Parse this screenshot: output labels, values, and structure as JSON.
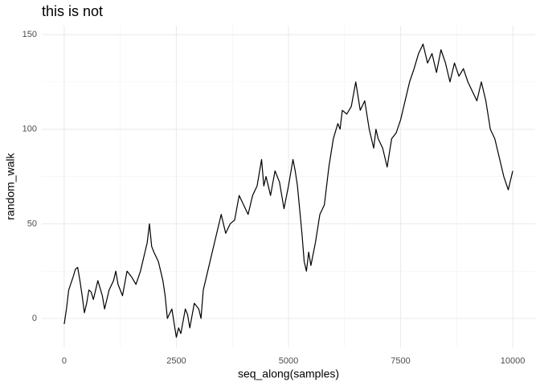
{
  "chart_data": {
    "type": "line",
    "title": "this is not",
    "xlabel": "seq_along(samples)",
    "ylabel": "random_walk",
    "x": [
      0,
      50,
      100,
      200,
      250,
      300,
      350,
      400,
      450,
      500,
      550,
      600,
      650,
      700,
      750,
      800,
      850,
      900,
      950,
      1000,
      1100,
      1150,
      1200,
      1300,
      1400,
      1500,
      1600,
      1700,
      1800,
      1850,
      1900,
      1950,
      2000,
      2100,
      2200,
      2250,
      2300,
      2400,
      2500,
      2550,
      2600,
      2700,
      2750,
      2800,
      2900,
      3000,
      3050,
      3100,
      3200,
      3300,
      3400,
      3500,
      3600,
      3700,
      3800,
      3900,
      4000,
      4100,
      4200,
      4300,
      4400,
      4450,
      4500,
      4600,
      4700,
      4800,
      4900,
      5000,
      5100,
      5150,
      5200,
      5300,
      5350,
      5400,
      5450,
      5500,
      5600,
      5700,
      5800,
      5900,
      6000,
      6100,
      6150,
      6200,
      6300,
      6400,
      6500,
      6600,
      6700,
      6800,
      6900,
      6950,
      7000,
      7100,
      7200,
      7300,
      7400,
      7500,
      7600,
      7700,
      7800,
      7900,
      8000,
      8100,
      8200,
      8300,
      8400,
      8500,
      8600,
      8700,
      8800,
      8900,
      9000,
      9100,
      9200,
      9300,
      9400,
      9500,
      9600,
      9700,
      9800,
      9900,
      10000
    ],
    "series": [
      {
        "name": "random_walk",
        "color": "#000000",
        "values": [
          -3,
          5,
          15,
          22,
          26,
          27,
          20,
          12,
          3,
          8,
          15,
          14,
          10,
          15,
          20,
          16,
          12,
          5,
          10,
          15,
          20,
          25,
          18,
          12,
          25,
          22,
          18,
          25,
          35,
          40,
          50,
          38,
          35,
          30,
          20,
          12,
          0,
          5,
          -10,
          -5,
          -8,
          5,
          2,
          -5,
          8,
          5,
          0,
          15,
          25,
          35,
          45,
          55,
          45,
          50,
          52,
          65,
          60,
          55,
          65,
          70,
          84,
          70,
          75,
          65,
          78,
          72,
          58,
          70,
          84,
          78,
          70,
          45,
          30,
          25,
          35,
          28,
          40,
          55,
          60,
          80,
          95,
          103,
          100,
          110,
          108,
          112,
          125,
          110,
          115,
          100,
          90,
          100,
          95,
          90,
          80,
          95,
          98,
          105,
          115,
          125,
          132,
          140,
          145,
          135,
          140,
          130,
          142,
          135,
          125,
          135,
          128,
          132,
          125,
          120,
          115,
          125,
          115,
          100,
          95,
          85,
          75,
          68,
          78
        ]
      }
    ],
    "xlim": [
      -500,
      10500
    ],
    "ylim": [
      -15.3,
      154.7
    ],
    "xticks": [
      0,
      2500,
      5000,
      7500,
      10000
    ],
    "yticks": [
      0,
      50,
      100,
      150
    ],
    "xminor": [
      1250,
      3750,
      6250,
      8750
    ],
    "yminor": [
      25,
      75,
      125
    ],
    "grid": true
  }
}
